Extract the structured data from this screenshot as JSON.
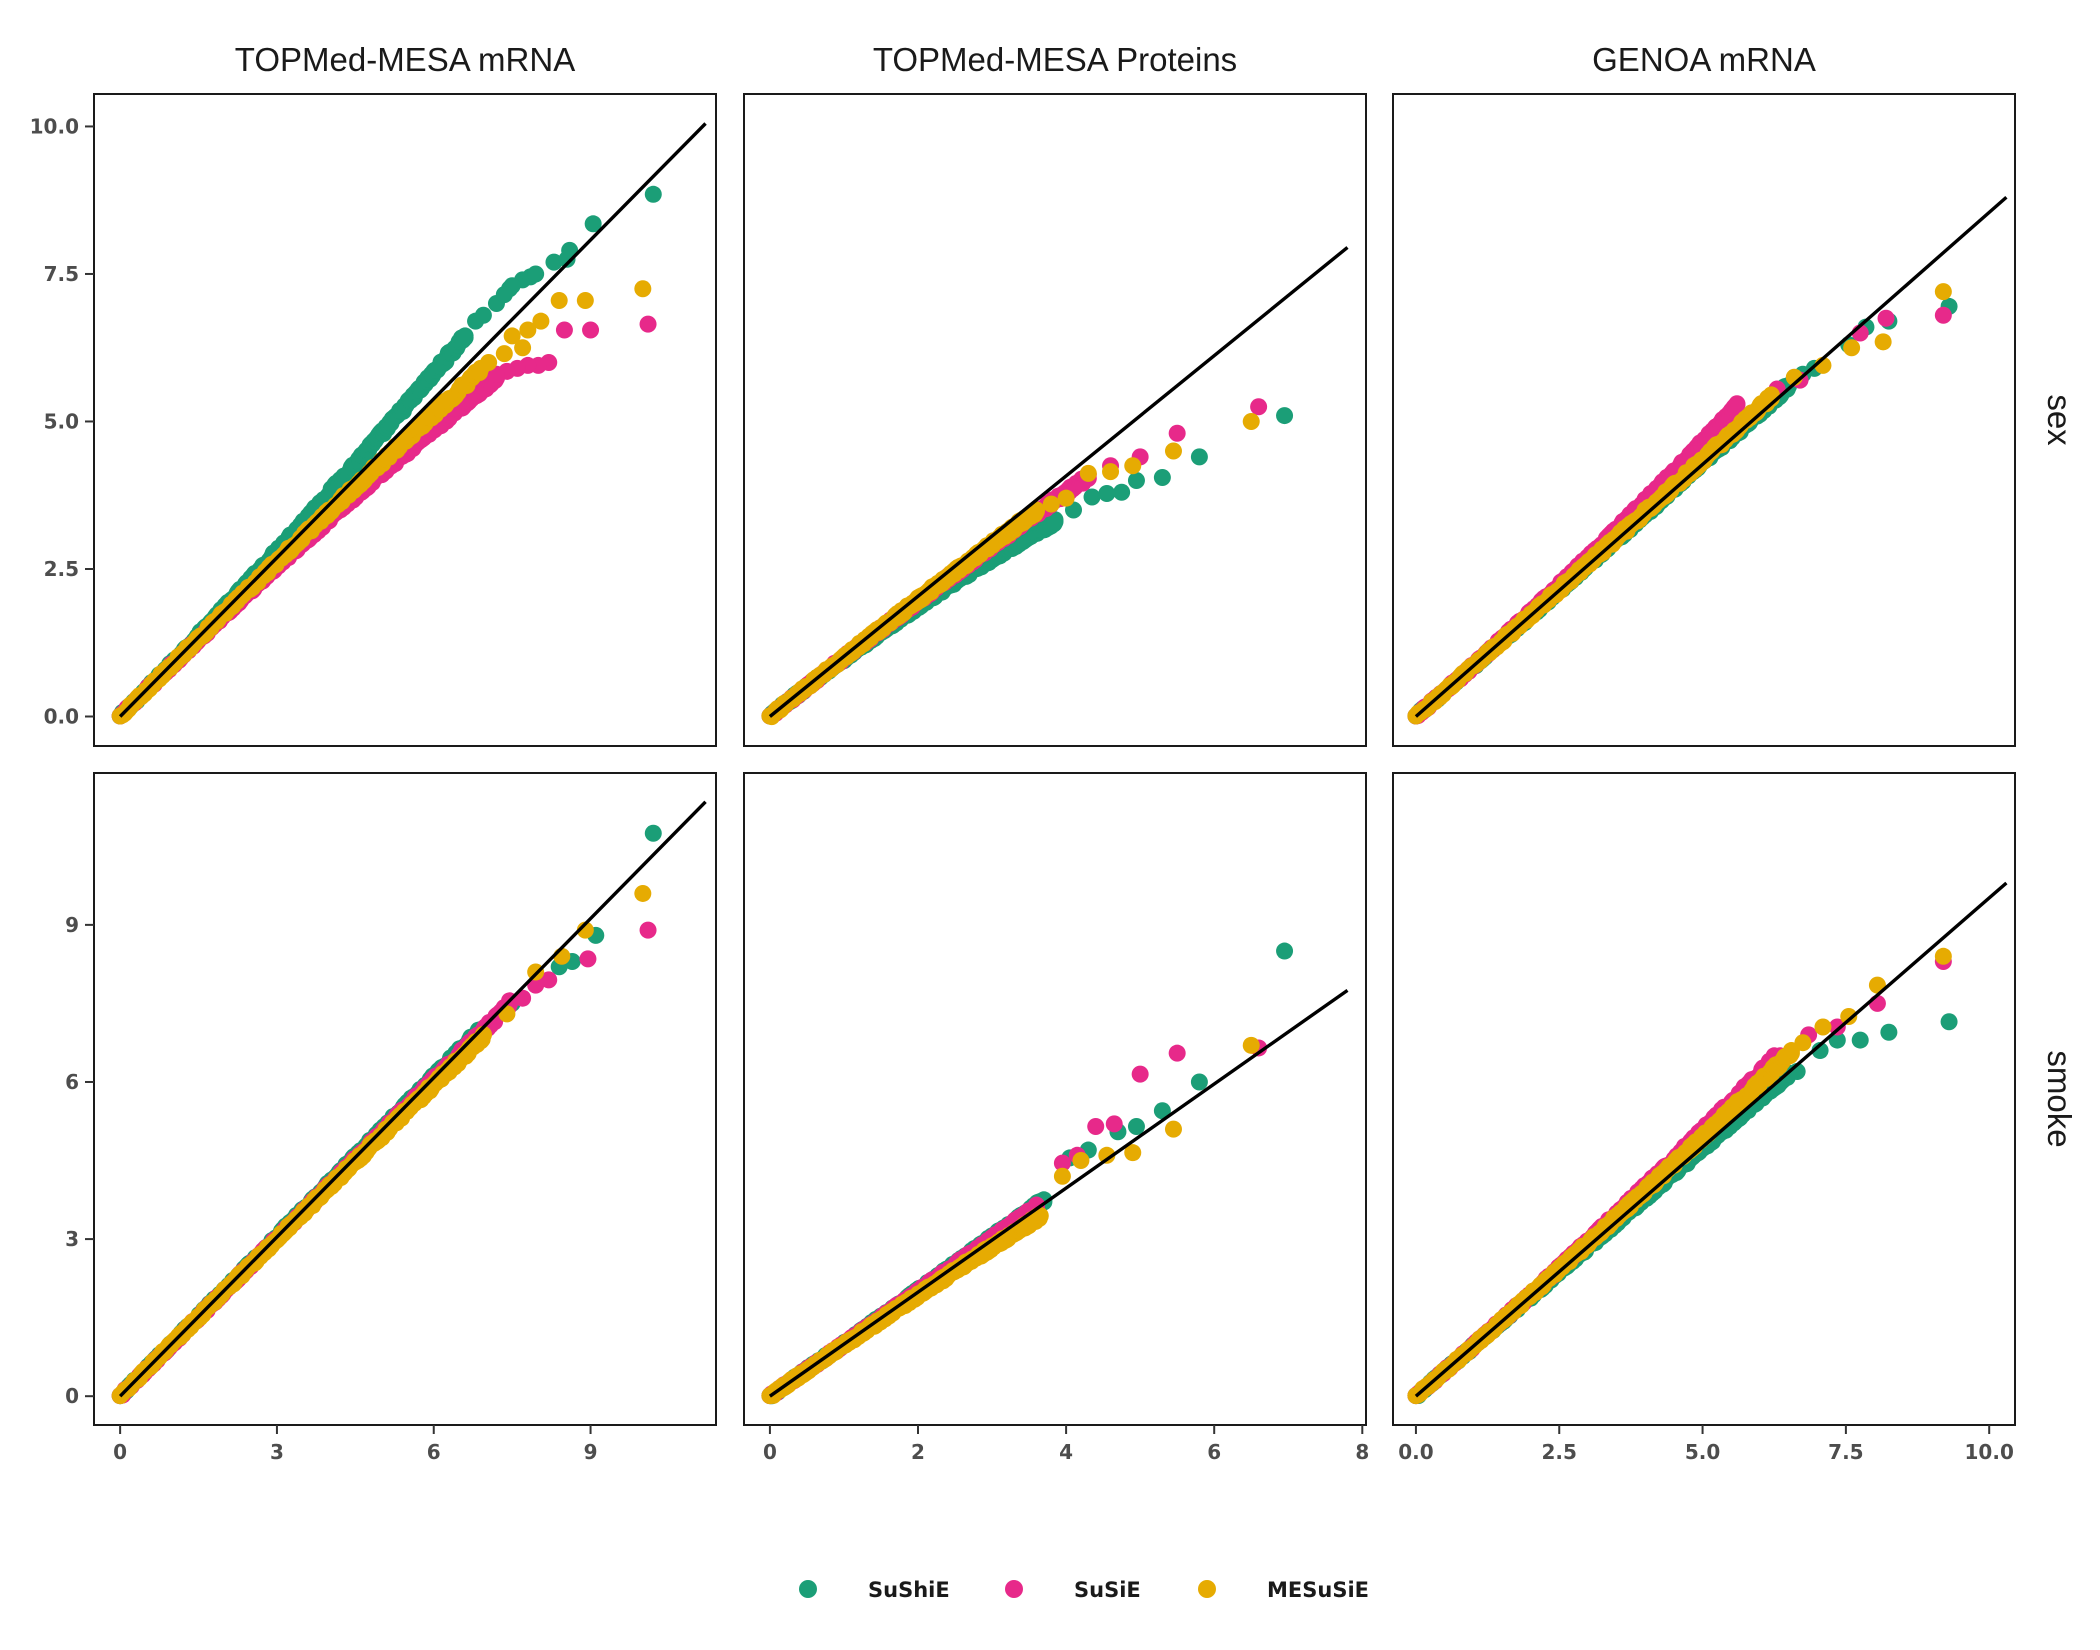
{
  "chart_data": {
    "type": "scatter",
    "facet_columns": [
      "TOPMed-MESA mRNA",
      "TOPMed-MESA Proteins",
      "GENOA mRNA"
    ],
    "facet_rows": [
      "sex",
      "smoke"
    ],
    "legend": {
      "position": "bottom"
    },
    "grid": false,
    "series": [
      {
        "name": "SuShiE",
        "color": "#1b9e77"
      },
      {
        "name": "SuSiE",
        "color": "#e7298a"
      },
      {
        "name": "MESuSiE",
        "color": "#e6ab02"
      }
    ],
    "panels": [
      {
        "row": "sex",
        "column": "TOPMed-MESA mRNA",
        "xlim": [
          -0.5,
          11.4
        ],
        "ylim": [
          -0.5,
          10.55
        ],
        "xticks": [
          0,
          3,
          6,
          9
        ],
        "xticklabels": [
          "0",
          "3",
          "6",
          "9"
        ],
        "yticks": [
          0,
          2.5,
          5,
          7.5,
          10
        ],
        "yticklabels": [
          "0.0",
          "2.5",
          "5.0",
          "7.5",
          "10.0"
        ],
        "diagonal": [
          [
            0,
            0
          ],
          [
            11.2,
            10.05
          ]
        ],
        "points": {
          "SuShiE": [
            [
              8.3,
              7.7
            ],
            [
              8.55,
              7.75
            ],
            [
              8.6,
              7.9
            ],
            [
              9.05,
              8.35
            ],
            [
              10.2,
              8.85
            ],
            [
              7.7,
              7.4
            ],
            [
              7.85,
              7.45
            ],
            [
              7.95,
              7.5
            ],
            [
              7.45,
              7.25
            ],
            [
              7.5,
              7.3
            ],
            [
              7.2,
              7.0
            ],
            [
              7.35,
              7.15
            ],
            [
              6.8,
              6.7
            ],
            [
              6.95,
              6.8
            ],
            [
              6.6,
              6.45
            ]
          ],
          "SuSiE": [
            [
              10.1,
              6.65
            ],
            [
              9.0,
              6.55
            ],
            [
              8.5,
              6.55
            ],
            [
              8.2,
              6.0
            ],
            [
              8.0,
              5.95
            ],
            [
              7.8,
              5.95
            ],
            [
              7.6,
              5.9
            ],
            [
              7.4,
              5.85
            ],
            [
              7.2,
              5.8
            ]
          ],
          "MESuSiE": [
            [
              10.0,
              7.25
            ],
            [
              8.9,
              7.05
            ],
            [
              8.4,
              7.05
            ],
            [
              8.05,
              6.7
            ],
            [
              7.8,
              6.55
            ],
            [
              7.5,
              6.45
            ],
            [
              7.7,
              6.25
            ],
            [
              7.35,
              6.15
            ],
            [
              7.05,
              6.0
            ],
            [
              6.9,
              5.9
            ]
          ]
        }
      },
      {
        "row": "sex",
        "column": "TOPMed-MESA Proteins",
        "xlim": [
          -0.35,
          8.05
        ],
        "ylim": [
          -0.5,
          10.55
        ],
        "xticks": [
          0,
          2,
          4,
          6,
          8
        ],
        "xticklabels": [
          "0",
          "2",
          "4",
          "6",
          "8"
        ],
        "yticks": [
          0,
          2.5,
          5,
          7.5,
          10
        ],
        "yticklabels": [],
        "diagonal": [
          [
            0,
            0
          ],
          [
            7.8,
            7.95
          ]
        ],
        "points": {
          "SuShiE": [
            [
              6.95,
              5.1
            ],
            [
              5.8,
              4.4
            ],
            [
              5.3,
              4.05
            ],
            [
              4.95,
              4.0
            ],
            [
              4.75,
              3.8
            ],
            [
              4.55,
              3.78
            ],
            [
              4.35,
              3.72
            ],
            [
              4.1,
              3.5
            ],
            [
              3.85,
              3.3
            ]
          ],
          "SuSiE": [
            [
              6.6,
              5.25
            ],
            [
              5.5,
              4.8
            ],
            [
              5.0,
              4.4
            ],
            [
              4.6,
              4.25
            ],
            [
              4.3,
              4.1
            ]
          ],
          "MESuSiE": [
            [
              6.5,
              5.0
            ],
            [
              5.45,
              4.5
            ],
            [
              4.9,
              4.25
            ],
            [
              4.6,
              4.15
            ],
            [
              4.3,
              4.12
            ],
            [
              4.0,
              3.7
            ],
            [
              3.8,
              3.6
            ],
            [
              3.6,
              3.5
            ]
          ]
        }
      },
      {
        "row": "sex",
        "column": "GENOA mRNA",
        "xlim": [
          -0.4,
          10.45
        ],
        "ylim": [
          -0.5,
          10.55
        ],
        "xticks": [
          0,
          2.5,
          5,
          7.5,
          10
        ],
        "xticklabels": [
          "0.0",
          "2.5",
          "5.0",
          "7.5",
          "10.0"
        ],
        "yticks": [
          0,
          2.5,
          5,
          7.5,
          10
        ],
        "yticklabels": [],
        "diagonal": [
          [
            0,
            0
          ],
          [
            10.3,
            8.8
          ]
        ],
        "points": {
          "SuShiE": [
            [
              9.3,
              6.95
            ],
            [
              8.25,
              6.7
            ],
            [
              7.85,
              6.6
            ],
            [
              7.55,
              6.3
            ],
            [
              6.95,
              5.9
            ],
            [
              6.75,
              5.8
            ],
            [
              6.5,
              5.6
            ]
          ],
          "SuSiE": [
            [
              9.2,
              6.8
            ],
            [
              8.2,
              6.75
            ],
            [
              7.75,
              6.5
            ],
            [
              6.7,
              5.7
            ],
            [
              6.3,
              5.55
            ],
            [
              5.6,
              5.3
            ]
          ],
          "MESuSiE": [
            [
              9.2,
              7.2
            ],
            [
              8.15,
              6.35
            ],
            [
              7.6,
              6.25
            ],
            [
              7.1,
              5.95
            ],
            [
              6.6,
              5.75
            ],
            [
              6.2,
              5.45
            ]
          ]
        }
      },
      {
        "row": "smoke",
        "column": "TOPMed-MESA mRNA",
        "xlim": [
          -0.5,
          11.4
        ],
        "ylim": [
          -0.55,
          11.9
        ],
        "xticks": [
          0,
          3,
          6,
          9
        ],
        "xticklabels": [
          "0",
          "3",
          "6",
          "9"
        ],
        "yticks": [
          0,
          3,
          6,
          9
        ],
        "yticklabels": [
          "0",
          "3",
          "6",
          "9"
        ],
        "diagonal": [
          [
            0,
            0
          ],
          [
            11.2,
            11.35
          ]
        ],
        "points": {
          "SuShiE": [
            [
              10.2,
              10.75
            ],
            [
              9.1,
              8.8
            ],
            [
              8.65,
              8.3
            ],
            [
              8.4,
              8.2
            ],
            [
              7.5,
              7.5
            ],
            [
              6.9,
              7.0
            ]
          ],
          "SuSiE": [
            [
              10.1,
              8.9
            ],
            [
              8.95,
              8.35
            ],
            [
              8.2,
              7.95
            ],
            [
              7.95,
              7.85
            ],
            [
              7.7,
              7.6
            ],
            [
              7.45,
              7.55
            ]
          ],
          "MESuSiE": [
            [
              10.0,
              9.6
            ],
            [
              8.9,
              8.9
            ],
            [
              8.45,
              8.4
            ],
            [
              7.95,
              8.1
            ],
            [
              7.4,
              7.3
            ],
            [
              6.95,
              6.9
            ]
          ]
        }
      },
      {
        "row": "smoke",
        "column": "TOPMed-MESA Proteins",
        "xlim": [
          -0.35,
          8.05
        ],
        "ylim": [
          -0.55,
          11.9
        ],
        "xticks": [
          0,
          2,
          4,
          6,
          8
        ],
        "xticklabels": [
          "0",
          "2",
          "4",
          "6",
          "8"
        ],
        "yticks": [
          0,
          3,
          6,
          9
        ],
        "yticklabels": [],
        "diagonal": [
          [
            0,
            0
          ],
          [
            7.8,
            7.75
          ]
        ],
        "points": {
          "SuShiE": [
            [
              6.95,
              8.5
            ],
            [
              5.8,
              6.0
            ],
            [
              5.3,
              5.45
            ],
            [
              4.95,
              5.15
            ],
            [
              4.7,
              5.05
            ],
            [
              4.3,
              4.7
            ],
            [
              4.05,
              4.55
            ],
            [
              3.7,
              3.75
            ]
          ],
          "SuSiE": [
            [
              6.6,
              6.65
            ],
            [
              5.5,
              6.55
            ],
            [
              5.0,
              6.15
            ],
            [
              4.65,
              5.2
            ],
            [
              4.4,
              5.15
            ],
            [
              4.15,
              4.6
            ],
            [
              3.95,
              4.45
            ],
            [
              3.6,
              3.65
            ]
          ],
          "MESuSiE": [
            [
              6.5,
              6.7
            ],
            [
              5.45,
              5.1
            ],
            [
              4.9,
              4.65
            ],
            [
              4.55,
              4.6
            ],
            [
              4.2,
              4.5
            ],
            [
              3.95,
              4.2
            ],
            [
              3.65,
              3.45
            ]
          ]
        }
      },
      {
        "row": "smoke",
        "column": "GENOA mRNA",
        "xlim": [
          -0.4,
          10.45
        ],
        "ylim": [
          -0.55,
          11.9
        ],
        "xticks": [
          0,
          2.5,
          5,
          7.5,
          10
        ],
        "xticklabels": [
          "0.0",
          "2.5",
          "5.0",
          "7.5",
          "10.0"
        ],
        "yticks": [
          0,
          3,
          6,
          9
        ],
        "yticklabels": [],
        "diagonal": [
          [
            0,
            0
          ],
          [
            10.3,
            9.8
          ]
        ],
        "points": {
          "SuShiE": [
            [
              9.3,
              7.15
            ],
            [
              8.25,
              6.95
            ],
            [
              7.75,
              6.8
            ],
            [
              7.35,
              6.8
            ],
            [
              7.05,
              6.6
            ],
            [
              6.65,
              6.2
            ],
            [
              6.5,
              6.15
            ]
          ],
          "SuSiE": [
            [
              9.2,
              8.3
            ],
            [
              8.05,
              7.5
            ],
            [
              7.35,
              7.05
            ],
            [
              6.85,
              6.9
            ],
            [
              6.35,
              6.5
            ],
            [
              6.25,
              6.5
            ]
          ],
          "MESuSiE": [
            [
              9.2,
              8.4
            ],
            [
              8.05,
              7.85
            ],
            [
              7.55,
              7.25
            ],
            [
              7.1,
              7.05
            ],
            [
              6.75,
              6.75
            ],
            [
              6.55,
              6.6
            ]
          ]
        }
      }
    ]
  }
}
